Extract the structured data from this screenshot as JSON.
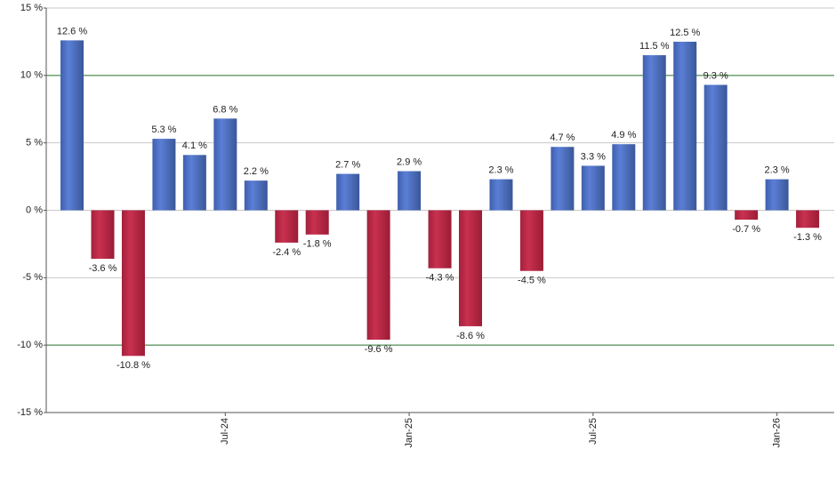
{
  "chart_data": {
    "type": "bar",
    "categories": [
      null,
      null,
      null,
      null,
      null,
      "Jul-24",
      null,
      null,
      null,
      null,
      null,
      "Jan-25",
      null,
      null,
      null,
      null,
      null,
      "Jul-25",
      null,
      null,
      null,
      null,
      null,
      "Jan-26",
      null
    ],
    "values": [
      12.6,
      -3.6,
      -10.8,
      5.3,
      4.1,
      6.8,
      2.2,
      -2.4,
      -1.8,
      2.7,
      -9.6,
      2.9,
      -4.3,
      -8.6,
      2.3,
      -4.5,
      4.7,
      3.3,
      4.9,
      11.5,
      12.5,
      9.3,
      -0.7,
      2.3,
      -1.3
    ],
    "value_labels": [
      "12.6 %",
      "-3.6 %",
      "-10.8 %",
      "5.3 %",
      "4.1 %",
      "6.8 %",
      "2.2 %",
      "-2.4 %",
      "-1.8 %",
      "2.7 %",
      "-9.6 %",
      "2.9 %",
      "-4.3 %",
      "-8.6 %",
      "2.3 %",
      "-4.5 %",
      "4.7 %",
      "3.3 %",
      "4.9 %",
      "11.5 %",
      "12.5 %",
      "9.3 %",
      "-0.7 %",
      "2.3 %",
      "-1.3 %"
    ],
    "positive_color": "#5b7fd6",
    "negative_color": "#c8314f",
    "ylim": [
      -15,
      15
    ],
    "yticks": [
      {
        "value": -15,
        "label": "-15 %"
      },
      {
        "value": -10,
        "label": "-10 %"
      },
      {
        "value": -5,
        "label": "-5 %"
      },
      {
        "value": 0,
        "label": "0 %"
      },
      {
        "value": 5,
        "label": "5 %"
      },
      {
        "value": 10,
        "label": "10 %"
      },
      {
        "value": 15,
        "label": "15 %"
      }
    ],
    "grid": true,
    "grid_color": "#c8c8c8",
    "highlight_lines": [
      10,
      -10
    ],
    "highlight_color": "#2e7d32"
  }
}
